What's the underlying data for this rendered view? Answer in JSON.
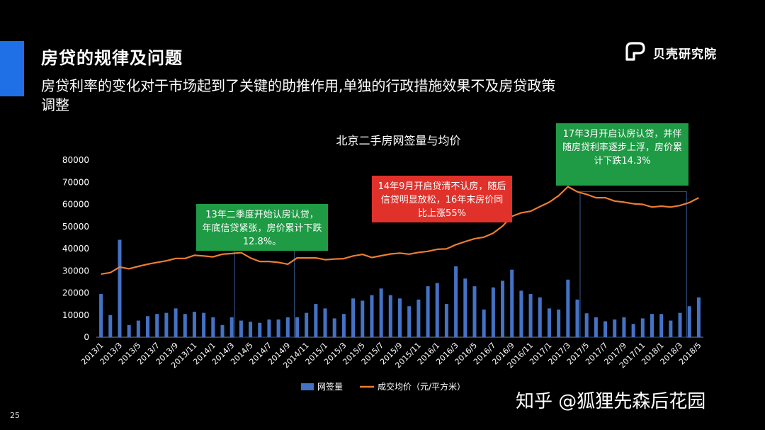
{
  "slide": {
    "title": "房贷的规律及问题",
    "subtitle": "房贷利率的变化对于市场起到了关键的助推作用,单独的行政措施效果不及房贷政策调整",
    "logo_text": "贝壳研究院",
    "page_number": "25",
    "watermark": "知乎 @狐狸先森后花园",
    "accent_color": "#1f6fe6"
  },
  "annotations": [
    {
      "text": "13年二季度开始认房认贷，年底信贷紧张，房价累计下跌12.8%。",
      "color": "#1f9a45"
    },
    {
      "text": "14年9月开启贷清不认房，随后信贷明显放松，16年末房价同比上涨55%",
      "color": "#e0312b"
    },
    {
      "text": "17年3月开启认房认贷，并伴随房贷利率逐步上浮，房价累计下跌14.3%",
      "color": "#1f9a45"
    }
  ],
  "chart_data": {
    "type": "bar",
    "title": "北京二手房网签量与均价",
    "x": [
      "2013/1",
      "2013/2",
      "2013/3",
      "2013/4",
      "2013/5",
      "2013/6",
      "2013/7",
      "2013/8",
      "2013/9",
      "2013/10",
      "2013/11",
      "2013/12",
      "2014/1",
      "2014/2",
      "2014/3",
      "2014/4",
      "2014/5",
      "2014/6",
      "2014/7",
      "2014/8",
      "2014/9",
      "2014/10",
      "2014/11",
      "2014/12",
      "2015/1",
      "2015/2",
      "2015/3",
      "2015/4",
      "2015/5",
      "2015/6",
      "2015/7",
      "2015/8",
      "2015/9",
      "2015/10",
      "2015/11",
      "2015/12",
      "2016/1",
      "2016/2",
      "2016/3",
      "2016/4",
      "2016/5",
      "2016/6",
      "2016/7",
      "2016/8",
      "2016/9",
      "2016/10",
      "2016/11",
      "2016/12",
      "2017/1",
      "2017/2",
      "2017/3",
      "2017/4",
      "2017/5",
      "2017/6",
      "2017/7",
      "2017/8",
      "2017/9",
      "2017/10",
      "2017/11",
      "2017/12",
      "2018/1",
      "2018/2",
      "2018/3",
      "2018/4",
      "2018/5"
    ],
    "x_tick_labels": [
      "2013/1",
      "2013/3",
      "2013/5",
      "2013/7",
      "2013/9",
      "2013/11",
      "2014/1",
      "2014/3",
      "2014/5",
      "2014/7",
      "2014/9",
      "2014/11",
      "2015/1",
      "2015/3",
      "2015/5",
      "2015/7",
      "2015/9",
      "2015/11",
      "2016/1",
      "2016/3",
      "2016/5",
      "2016/7",
      "2016/9",
      "2016/11",
      "2017/1",
      "2017/3",
      "2017/5",
      "2017/7",
      "2017/9",
      "2017/11",
      "2018/1",
      "2018/3",
      "2018/5"
    ],
    "series": [
      {
        "name": "网签量",
        "type": "bar",
        "color": "#4472c4",
        "values": [
          19500,
          10000,
          44000,
          5500,
          7500,
          9500,
          10500,
          11000,
          13000,
          10500,
          11500,
          11000,
          9000,
          5500,
          9000,
          7500,
          7000,
          6500,
          8000,
          8000,
          9000,
          9000,
          11000,
          15000,
          13000,
          8500,
          10500,
          17500,
          16500,
          19000,
          22000,
          19000,
          17500,
          14000,
          17000,
          23000,
          24500,
          15000,
          32000,
          26500,
          23000,
          12500,
          22500,
          25500,
          30500,
          21000,
          19500,
          18000,
          13000,
          12500,
          26000,
          17000,
          10800,
          9000,
          7200,
          8000,
          9000,
          6000,
          8500,
          10500,
          10500,
          7500,
          11000,
          14000,
          18000
        ]
      },
      {
        "name": "成交均价（元/平方米）",
        "type": "line",
        "color": "#ed7d31",
        "values": [
          28500,
          29200,
          31700,
          30900,
          32000,
          33000,
          33800,
          34500,
          35600,
          35600,
          37000,
          36700,
          36300,
          37500,
          37800,
          38200,
          35800,
          34200,
          34200,
          33800,
          33000,
          35800,
          35800,
          35800,
          35000,
          35300,
          35500,
          36700,
          37400,
          36000,
          36800,
          37600,
          38000,
          37500,
          38300,
          38800,
          39700,
          39900,
          41800,
          43200,
          44500,
          45200,
          47000,
          50200,
          54600,
          56200,
          56900,
          59000,
          61000,
          63900,
          68000,
          65700,
          64500,
          63000,
          63000,
          61500,
          61000,
          60300,
          60000,
          58800,
          59200,
          58800,
          59500,
          60800,
          63000
        ]
      }
    ],
    "ylim": [
      0,
      80000
    ],
    "yticks": [
      "0",
      "10000",
      "20000",
      "30000",
      "40000",
      "50000",
      "60000",
      "70000",
      "80000"
    ],
    "highlight_ranges": [
      [
        "2014/4",
        "2014/9"
      ],
      [
        "2017/5",
        "2018/3"
      ]
    ],
    "legend_position": "bottom",
    "grid": false
  }
}
